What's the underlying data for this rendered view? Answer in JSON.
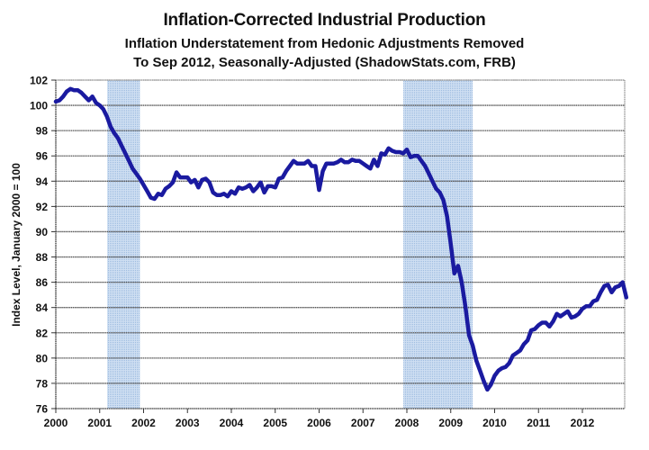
{
  "chart_data": {
    "type": "line",
    "title": "Inflation-Corrected Industrial Production",
    "subtitle_lines": [
      "Inflation Understatement from Hedonic Adjustments Removed",
      "To Sep 2012, Seasonally-Adjusted (ShadowStats.com, FRB)"
    ],
    "xlabel": "",
    "ylabel": "Index Level, January 2000 = 100",
    "ylim": [
      76,
      102
    ],
    "yticks": [
      76,
      78,
      80,
      82,
      84,
      86,
      88,
      90,
      92,
      94,
      96,
      98,
      100,
      102
    ],
    "xlim": [
      2000.0,
      2012.9
    ],
    "xticks": [
      2000,
      2001,
      2002,
      2003,
      2004,
      2005,
      2006,
      2007,
      2008,
      2009,
      2010,
      2011,
      2012
    ],
    "grid": "horizontal",
    "legend": "none",
    "line_color": "#1a1aa0",
    "shading_color": "#b7cde8",
    "shaded_periods": [
      {
        "label": "Recession 2001",
        "start": 2001.17,
        "end": 2001.92
      },
      {
        "label": "Recession 2007-2009",
        "start": 2007.92,
        "end": 2009.5
      }
    ],
    "series": [
      {
        "name": "Inflation-Corrected Industrial Production",
        "start": "Jan 2000",
        "frequency": "monthly",
        "values": [
          100.3,
          100.4,
          100.7,
          101.1,
          101.3,
          101.2,
          101.2,
          101.0,
          100.7,
          100.4,
          100.7,
          100.2,
          100.0,
          99.7,
          99.1,
          98.3,
          97.8,
          97.4,
          96.8,
          96.2,
          95.6,
          95.0,
          94.6,
          94.2,
          93.7,
          93.2,
          92.7,
          92.6,
          93.0,
          92.9,
          93.4,
          93.6,
          93.9,
          94.7,
          94.3,
          94.3,
          94.3,
          93.9,
          94.1,
          93.5,
          94.1,
          94.2,
          93.9,
          93.1,
          92.9,
          92.9,
          93.0,
          92.8,
          93.2,
          93.0,
          93.5,
          93.4,
          93.5,
          93.7,
          93.2,
          93.5,
          93.9,
          93.1,
          93.6,
          93.6,
          93.5,
          94.2,
          94.3,
          94.8,
          95.2,
          95.6,
          95.4,
          95.4,
          95.4,
          95.6,
          95.2,
          95.2,
          93.3,
          94.8,
          95.4,
          95.4,
          95.4,
          95.5,
          95.7,
          95.5,
          95.5,
          95.7,
          95.6,
          95.6,
          95.4,
          95.2,
          95.0,
          95.7,
          95.2,
          96.2,
          96.1,
          96.6,
          96.4,
          96.3,
          96.3,
          96.2,
          96.5,
          95.9,
          96.0,
          96.0,
          95.6,
          95.2,
          94.6,
          94.0,
          93.4,
          93.1,
          92.5,
          91.2,
          89.0,
          86.7,
          87.3,
          86.0,
          84.1,
          81.8,
          81.0,
          79.8,
          79.0,
          78.2,
          77.5,
          77.9,
          78.6,
          79.0,
          79.2,
          79.3,
          79.6,
          80.2,
          80.4,
          80.6,
          81.1,
          81.4,
          82.2,
          82.3,
          82.6,
          82.8,
          82.8,
          82.5,
          82.9,
          83.5,
          83.3,
          83.5,
          83.7,
          83.2,
          83.3,
          83.5,
          83.9,
          84.1,
          84.1,
          84.5,
          84.6,
          85.2,
          85.7,
          85.8,
          85.2,
          85.6,
          85.7,
          86.0,
          84.8
        ]
      }
    ]
  }
}
